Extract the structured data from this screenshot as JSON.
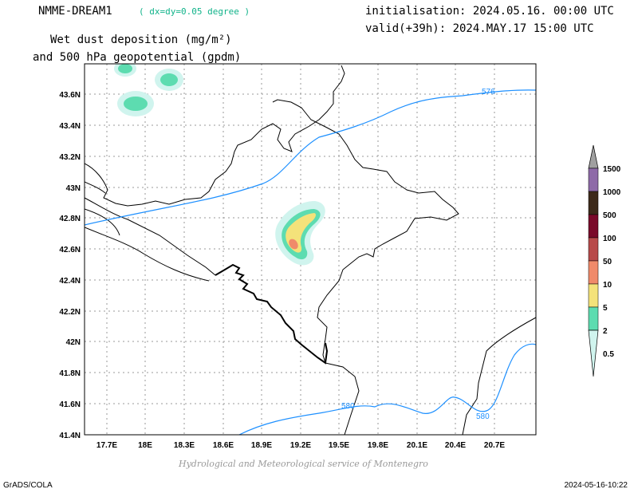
{
  "header": {
    "model_name": "NMME-DREAM1",
    "resolution": "( dx=dy=0.05 degree )",
    "initialisation": "initialisation: 2024.05.16. 00:00 UTC",
    "valid": "valid(+39h): 2024.MAY.17 15:00 UTC",
    "variable_line1": "Wet dust deposition (mg/m²)",
    "variable_line2": "and 500 hPa geopotential (gpdm)"
  },
  "map": {
    "lon_labels": [
      "17.7E",
      "18E",
      "18.3E",
      "18.6E",
      "18.9E",
      "19.2E",
      "19.5E",
      "19.8E",
      "20.1E",
      "20.4E",
      "20.7E"
    ],
    "lat_labels": [
      "43.6N",
      "43.4N",
      "43.2N",
      "43N",
      "42.8N",
      "42.6N",
      "42.4N",
      "42.2N",
      "42N",
      "41.8N",
      "41.6N",
      "41.4N"
    ],
    "contour_labels": [
      "576",
      "580",
      "580"
    ],
    "contour_color": "#1e90ff",
    "grid": true
  },
  "colorbar": {
    "levels": [
      "1500",
      "1000",
      "500",
      "100",
      "50",
      "10",
      "5",
      "2",
      "0.5"
    ],
    "colors": [
      "#a0a0a0",
      "#8e6aa8",
      "#3d2a1a",
      "#7a0a2a",
      "#b84a4a",
      "#f08a6a",
      "#f4e27a",
      "#5ddcb0",
      "#d0f4ee"
    ]
  },
  "footer": {
    "credit": "Hydrological and Meteorological service of Montenegro",
    "software": "GrADS/COLA",
    "timestamp": "2024-05-16-10:22"
  }
}
